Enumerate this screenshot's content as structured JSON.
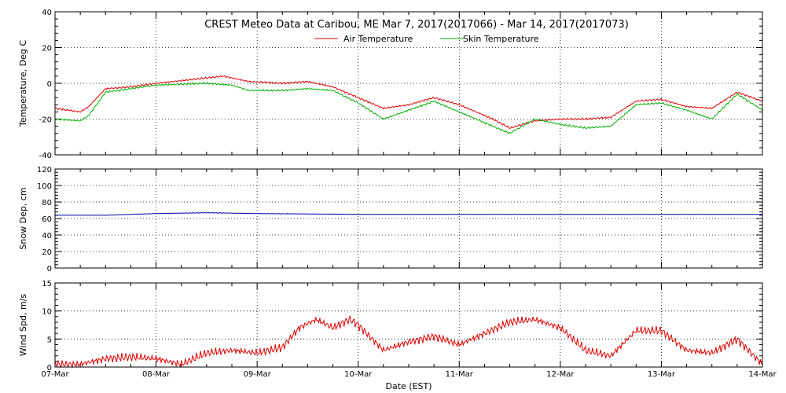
{
  "title": "CREST Meteo Data at Caribou, ME   Mar  7, 2017(2017066) - Mar 14, 2017(2017073)",
  "xlabel": "Date (EST)",
  "x_tick_labels": [
    "07-Mar",
    "08-Mar",
    "09-Mar",
    "10-Mar",
    "11-Mar",
    "12-Mar",
    "13-Mar",
    "14-Mar"
  ],
  "colors": {
    "air": "#dd0000",
    "skin": "#00b000",
    "snow": "#0000aa",
    "wind": "#dd0000"
  },
  "chart_data": [
    {
      "type": "line",
      "ylabel": "Temperature, Deg C",
      "ylim": [
        -40,
        40
      ],
      "yticks": [
        -40,
        -20,
        0,
        20,
        40
      ],
      "xlim": [
        "2017-03-07",
        "2017-03-14"
      ],
      "grid": true,
      "legend": "top-center",
      "series": [
        {
          "name": "Air Temperature",
          "x": [
            "2017-03-07 00:00",
            "2017-03-07 06:00",
            "2017-03-07 08:00",
            "2017-03-07 12:00",
            "2017-03-07 18:00",
            "2017-03-08 00:00",
            "2017-03-08 12:00",
            "2017-03-08 16:00",
            "2017-03-08 22:00",
            "2017-03-09 06:00",
            "2017-03-09 12:00",
            "2017-03-09 18:00",
            "2017-03-10 00:00",
            "2017-03-10 06:00",
            "2017-03-10 12:00",
            "2017-03-10 18:00",
            "2017-03-11 00:00",
            "2017-03-11 08:00",
            "2017-03-11 12:00",
            "2017-03-11 18:00",
            "2017-03-12 00:00",
            "2017-03-12 06:00",
            "2017-03-12 12:00",
            "2017-03-12 18:00",
            "2017-03-13 00:00",
            "2017-03-13 06:00",
            "2017-03-13 12:00",
            "2017-03-13 18:00",
            "2017-03-14 00:00"
          ],
          "y": [
            -14,
            -16,
            -13,
            -3,
            -2,
            0,
            3,
            4,
            1,
            0,
            1,
            -2,
            -8,
            -14,
            -12,
            -8,
            -12,
            -20,
            -25,
            -21,
            -20,
            -20,
            -19,
            -10,
            -9,
            -13,
            -14,
            -5,
            -10
          ]
        },
        {
          "name": "Skin Temperature",
          "x": [
            "2017-03-07 00:00",
            "2017-03-07 06:00",
            "2017-03-07 08:00",
            "2017-03-07 12:00",
            "2017-03-07 18:00",
            "2017-03-08 00:00",
            "2017-03-08 12:00",
            "2017-03-08 18:00",
            "2017-03-08 22:00",
            "2017-03-09 06:00",
            "2017-03-09 12:00",
            "2017-03-09 18:00",
            "2017-03-10 00:00",
            "2017-03-10 06:00",
            "2017-03-10 12:00",
            "2017-03-10 18:00",
            "2017-03-11 00:00",
            "2017-03-11 08:00",
            "2017-03-11 12:00",
            "2017-03-11 18:00",
            "2017-03-12 00:00",
            "2017-03-12 06:00",
            "2017-03-12 12:00",
            "2017-03-12 18:00",
            "2017-03-13 00:00",
            "2017-03-13 06:00",
            "2017-03-13 12:00",
            "2017-03-13 18:00",
            "2017-03-14 00:00"
          ],
          "y": [
            -20,
            -21,
            -18,
            -5,
            -3,
            -1,
            0,
            -1,
            -4,
            -4,
            -3,
            -4,
            -11,
            -20,
            -15,
            -10,
            -16,
            -24,
            -28,
            -20,
            -23,
            -25,
            -24,
            -12,
            -11,
            -15,
            -20,
            -6,
            -15
          ]
        }
      ]
    },
    {
      "type": "line",
      "ylabel": "Snow Dep, cm",
      "ylim": [
        0,
        120
      ],
      "yticks": [
        0,
        20,
        40,
        60,
        80,
        100,
        120
      ],
      "xlim": [
        "2017-03-07",
        "2017-03-14"
      ],
      "grid": true,
      "series": [
        {
          "x": [
            "2017-03-07 00:00",
            "2017-03-07 12:00",
            "2017-03-08 00:00",
            "2017-03-08 12:00",
            "2017-03-09 00:00",
            "2017-03-10 00:00",
            "2017-03-11 00:00",
            "2017-03-12 00:00",
            "2017-03-13 00:00",
            "2017-03-14 00:00"
          ],
          "y": [
            64,
            64,
            66,
            67,
            66,
            65,
            65,
            65,
            65,
            65
          ]
        }
      ]
    },
    {
      "type": "line",
      "ylabel": "Wind Spd, m/s",
      "ylim": [
        0,
        15
      ],
      "yticks": [
        0,
        5,
        10,
        15
      ],
      "xlim": [
        "2017-03-07",
        "2017-03-14"
      ],
      "grid": true,
      "series": [
        {
          "x": [
            "2017-03-07 00:00",
            "2017-03-07 06:00",
            "2017-03-07 12:00",
            "2017-03-07 18:00",
            "2017-03-08 00:00",
            "2017-03-08 06:00",
            "2017-03-08 12:00",
            "2017-03-08 18:00",
            "2017-03-09 00:00",
            "2017-03-09 06:00",
            "2017-03-09 10:00",
            "2017-03-09 14:00",
            "2017-03-09 18:00",
            "2017-03-09 22:00",
            "2017-03-10 00:00",
            "2017-03-10 06:00",
            "2017-03-10 12:00",
            "2017-03-10 18:00",
            "2017-03-11 00:00",
            "2017-03-11 06:00",
            "2017-03-11 12:00",
            "2017-03-11 18:00",
            "2017-03-12 00:00",
            "2017-03-12 06:00",
            "2017-03-12 12:00",
            "2017-03-12 18:00",
            "2017-03-13 00:00",
            "2017-03-13 06:00",
            "2017-03-13 12:00",
            "2017-03-13 18:00",
            "2017-03-13 22:00",
            "2017-03-14 00:00"
          ],
          "y": [
            0.5,
            0.5,
            1.5,
            1.8,
            1.5,
            0.5,
            2.5,
            3,
            2.5,
            3.5,
            7,
            8.5,
            7,
            8.5,
            7.5,
            3,
            4.5,
            5.5,
            4,
            6,
            8,
            8.5,
            7,
            3,
            2,
            6.5,
            6.5,
            3,
            2.5,
            5,
            2,
            0.5
          ]
        }
      ]
    }
  ]
}
